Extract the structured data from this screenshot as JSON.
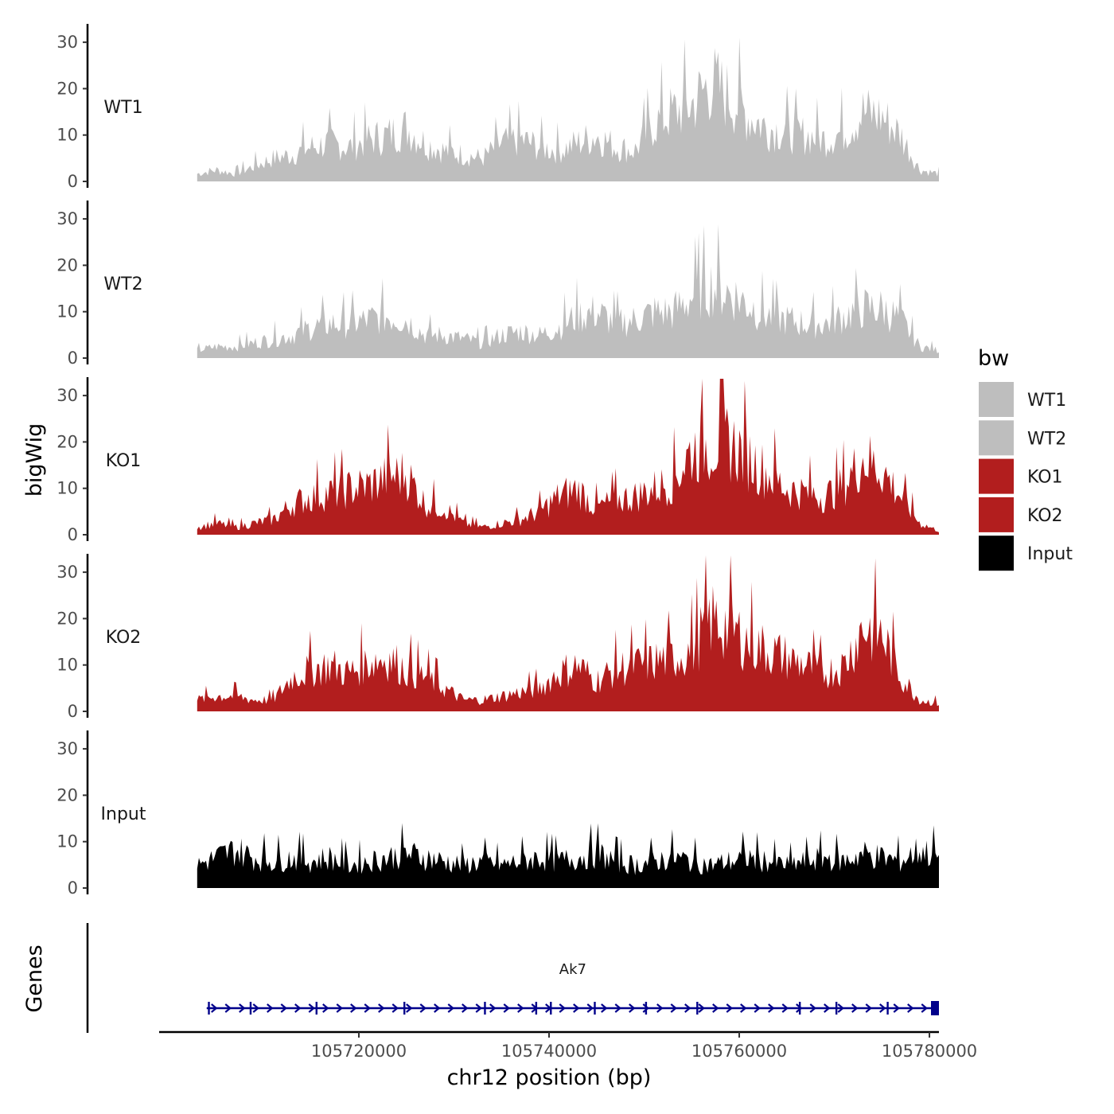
{
  "chart_data": {
    "type": "area",
    "chromosome": "chr12",
    "x_axis_title": "chr12 position (bp)",
    "y_axis_title": "bigWig",
    "genes_panel_title": "Genes",
    "xlim": [
      105699000,
      105781000
    ],
    "x_ticks": [
      105720000,
      105740000,
      105760000,
      105780000
    ],
    "x_tick_labels": [
      "105720000",
      "105740000",
      "105760000",
      "105780000"
    ],
    "y_range": [
      0,
      32
    ],
    "y_ticks": [
      0,
      10,
      20,
      30
    ],
    "y_tick_labels": [
      "0",
      "10",
      "20",
      "30"
    ],
    "legend": {
      "title": "bw",
      "entries": [
        {
          "label": "WT1",
          "color": "#bebebe"
        },
        {
          "label": "WT2",
          "color": "#bebebe"
        },
        {
          "label": "KO1",
          "color": "#b21e1e"
        },
        {
          "label": "KO2",
          "color": "#b21e1e"
        },
        {
          "label": "Input",
          "color": "#000000"
        }
      ]
    },
    "series": [
      {
        "name": "WT1",
        "color": "#bebebe",
        "x": [
          105703000,
          105705000,
          105707000,
          105709000,
          105711000,
          105713000,
          105715000,
          105717000,
          105719000,
          105721000,
          105723000,
          105725000,
          105727000,
          105729000,
          105731000,
          105733000,
          105735000,
          105737000,
          105739000,
          105741000,
          105743000,
          105745000,
          105747000,
          105749000,
          105751000,
          105753000,
          105755000,
          105757000,
          105759000,
          105761000,
          105763000,
          105765000,
          105767000,
          105769000,
          105771000,
          105773000,
          105775000,
          105777000,
          105779000,
          105781000
        ],
        "values": [
          2,
          3,
          2,
          4,
          6,
          7,
          9,
          10,
          9,
          11,
          12,
          14,
          10,
          8,
          7,
          6,
          10,
          11,
          9,
          8,
          10,
          12,
          9,
          8,
          15,
          18,
          20,
          26,
          22,
          17,
          14,
          13,
          12,
          11,
          13,
          18,
          17,
          12,
          3,
          2
        ]
      },
      {
        "name": "WT2",
        "color": "#bebebe",
        "x": [
          105703000,
          105705000,
          105707000,
          105709000,
          105711000,
          105713000,
          105715000,
          105717000,
          105719000,
          105721000,
          105723000,
          105725000,
          105727000,
          105729000,
          105731000,
          105733000,
          105735000,
          105737000,
          105739000,
          105741000,
          105743000,
          105745000,
          105747000,
          105749000,
          105751000,
          105753000,
          105755000,
          105757000,
          105759000,
          105761000,
          105763000,
          105765000,
          105767000,
          105769000,
          105771000,
          105773000,
          105775000,
          105777000,
          105779000,
          105781000
        ],
        "values": [
          2,
          3,
          3,
          4,
          5,
          6,
          8,
          9,
          9,
          10,
          11,
          10,
          6,
          6,
          5,
          4,
          6,
          7,
          6,
          8,
          11,
          12,
          9,
          10,
          12,
          12,
          16,
          19,
          17,
          14,
          11,
          10,
          9,
          9,
          11,
          13,
          13,
          10,
          3,
          2
        ]
      },
      {
        "name": "KO1",
        "color": "#b21e1e",
        "x": [
          105703000,
          105705000,
          105707000,
          105709000,
          105711000,
          105713000,
          105715000,
          105717000,
          105719000,
          105721000,
          105723000,
          105725000,
          105727000,
          105729000,
          105731000,
          105733000,
          105735000,
          105737000,
          105739000,
          105741000,
          105743000,
          105745000,
          105747000,
          105749000,
          105751000,
          105753000,
          105755000,
          105757000,
          105759000,
          105761000,
          105763000,
          105765000,
          105767000,
          105769000,
          105771000,
          105773000,
          105775000,
          105777000,
          105779000,
          105781000
        ],
        "values": [
          2,
          3,
          2,
          3,
          4,
          8,
          10,
          11,
          12,
          13,
          15,
          16,
          8,
          7,
          3,
          2,
          3,
          4,
          6,
          10,
          12,
          7,
          9,
          10,
          12,
          14,
          22,
          24,
          24,
          20,
          16,
          12,
          11,
          10,
          13,
          20,
          17,
          10,
          3,
          1
        ]
      },
      {
        "name": "KO2",
        "color": "#b21e1e",
        "x": [
          105703000,
          105705000,
          105707000,
          105709000,
          105711000,
          105713000,
          105715000,
          105717000,
          105719000,
          105721000,
          105723000,
          105725000,
          105727000,
          105729000,
          105731000,
          105733000,
          105735000,
          105737000,
          105739000,
          105741000,
          105743000,
          105745000,
          105747000,
          105749000,
          105751000,
          105753000,
          105755000,
          105757000,
          105759000,
          105761000,
          105763000,
          105765000,
          105767000,
          105769000,
          105771000,
          105773000,
          105775000,
          105777000,
          105779000,
          105781000
        ],
        "values": [
          3,
          4,
          4,
          3,
          3,
          9,
          11,
          12,
          10,
          13,
          14,
          11,
          9,
          6,
          3,
          3,
          4,
          5,
          6,
          10,
          12,
          8,
          11,
          12,
          13,
          14,
          16,
          24,
          22,
          18,
          16,
          14,
          12,
          10,
          12,
          22,
          20,
          9,
          3,
          2
        ]
      },
      {
        "name": "Input",
        "color": "#000000",
        "x": [
          105703000,
          105705000,
          105707000,
          105709000,
          105711000,
          105713000,
          105715000,
          105717000,
          105719000,
          105721000,
          105723000,
          105725000,
          105727000,
          105729000,
          105731000,
          105733000,
          105735000,
          105737000,
          105739000,
          105741000,
          105743000,
          105745000,
          105747000,
          105749000,
          105751000,
          105753000,
          105755000,
          105757000,
          105759000,
          105761000,
          105763000,
          105765000,
          105767000,
          105769000,
          105771000,
          105773000,
          105775000,
          105777000,
          105779000,
          105781000
        ],
        "values": [
          6,
          8,
          10,
          8,
          7,
          8,
          7,
          8,
          6,
          7,
          8,
          9,
          8,
          7,
          6,
          7,
          6,
          7,
          8,
          7,
          8,
          9,
          7,
          6,
          7,
          8,
          7,
          6,
          7,
          8,
          7,
          6,
          7,
          8,
          7,
          9,
          8,
          7,
          10,
          8
        ]
      }
    ],
    "genes": [
      {
        "name": "Ak7",
        "strand": "+",
        "start": 105704000,
        "end": 105781000,
        "color": "#00008b"
      }
    ]
  }
}
